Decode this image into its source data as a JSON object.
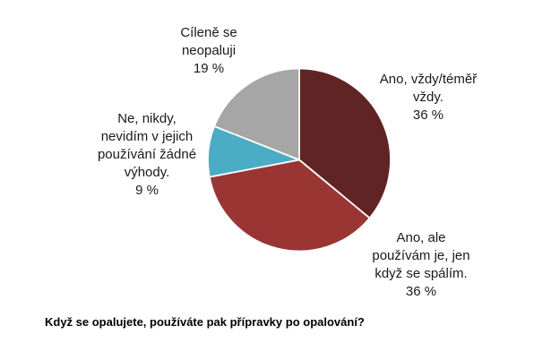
{
  "chart_data": {
    "type": "pie",
    "title": "",
    "caption": "Když se opalujete, používáte pak přípravky po opalování?",
    "start_angle_deg": 0,
    "direction": "clockwise",
    "legend_position": "none",
    "slices": [
      {
        "label": "Ano, vždy/téměř vždy.",
        "value_pct": 36,
        "color": "#5F2423",
        "label_text": "Ano, vždy/téměř\nvždy.\n36 %"
      },
      {
        "label": "Ano, ale používám je, jen když se spálím.",
        "value_pct": 36,
        "color": "#993634",
        "label_text": "Ano, ale\npoužívám je, jen\nkdyž se spálím.\n36 %"
      },
      {
        "label": "Ne, nikdy, nevidím v jejich používání žádné výhody.",
        "value_pct": 9,
        "color": "#4BACC6",
        "label_text": "Ne, nikdy,\nnevidím v jejich\npoužívání žádné\nvýhody.\n9 %"
      },
      {
        "label": "Cíleně se neopaluji",
        "value_pct": 19,
        "color": "#A6A6A6",
        "label_text": "Cíleně se\nneopaluji\n19 %"
      }
    ]
  }
}
